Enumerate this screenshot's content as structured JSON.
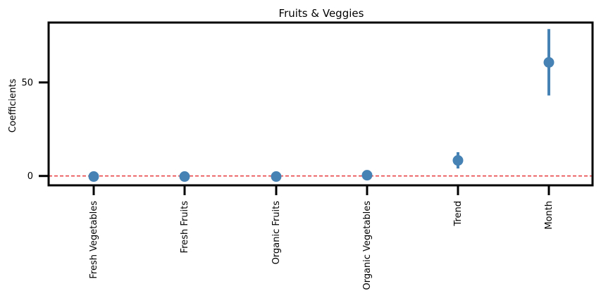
{
  "chart_data": {
    "type": "scatter",
    "title": "Fruits & Veggies",
    "xlabel": "",
    "ylabel": "Coefficients",
    "categories": [
      "Fresh Vegetables",
      "Fresh Fruits",
      "Organic Fruits",
      "Organic Vegetables",
      "Trend",
      "Month"
    ],
    "values": [
      -0.3,
      -0.3,
      -0.3,
      0.4,
      8.3,
      60.7
    ],
    "error_low": [
      -0.6,
      -0.6,
      -0.6,
      0.1,
      4.0,
      43.0
    ],
    "error_high": [
      0.0,
      0.0,
      0.0,
      0.7,
      12.7,
      78.5
    ],
    "ylim": [
      -5,
      82
    ],
    "yticks": [
      0,
      50
    ],
    "reference_line": {
      "y": 0,
      "color": "#e31a1c",
      "style": "dashed"
    },
    "grid": false,
    "colors": {
      "point": "#4682b4",
      "axis": "#000000"
    }
  }
}
